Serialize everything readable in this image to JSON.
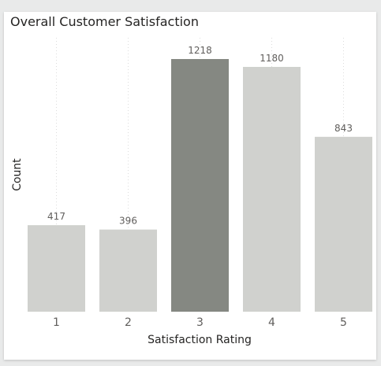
{
  "chart_data": {
    "type": "bar",
    "title": "Overall Customer Satisfaction",
    "xlabel": "Satisfaction Rating",
    "ylabel": "Count",
    "categories": [
      "1",
      "2",
      "3",
      "4",
      "5"
    ],
    "values": [
      417,
      396,
      1218,
      1180,
      843
    ],
    "highlighted": "3",
    "colors": {
      "default": "#d0d1ce",
      "highlight": "#858882",
      "gridline": "#dcdcdc"
    },
    "ylim": [
      0,
      1300
    ],
    "grid": true,
    "legend": "none"
  }
}
